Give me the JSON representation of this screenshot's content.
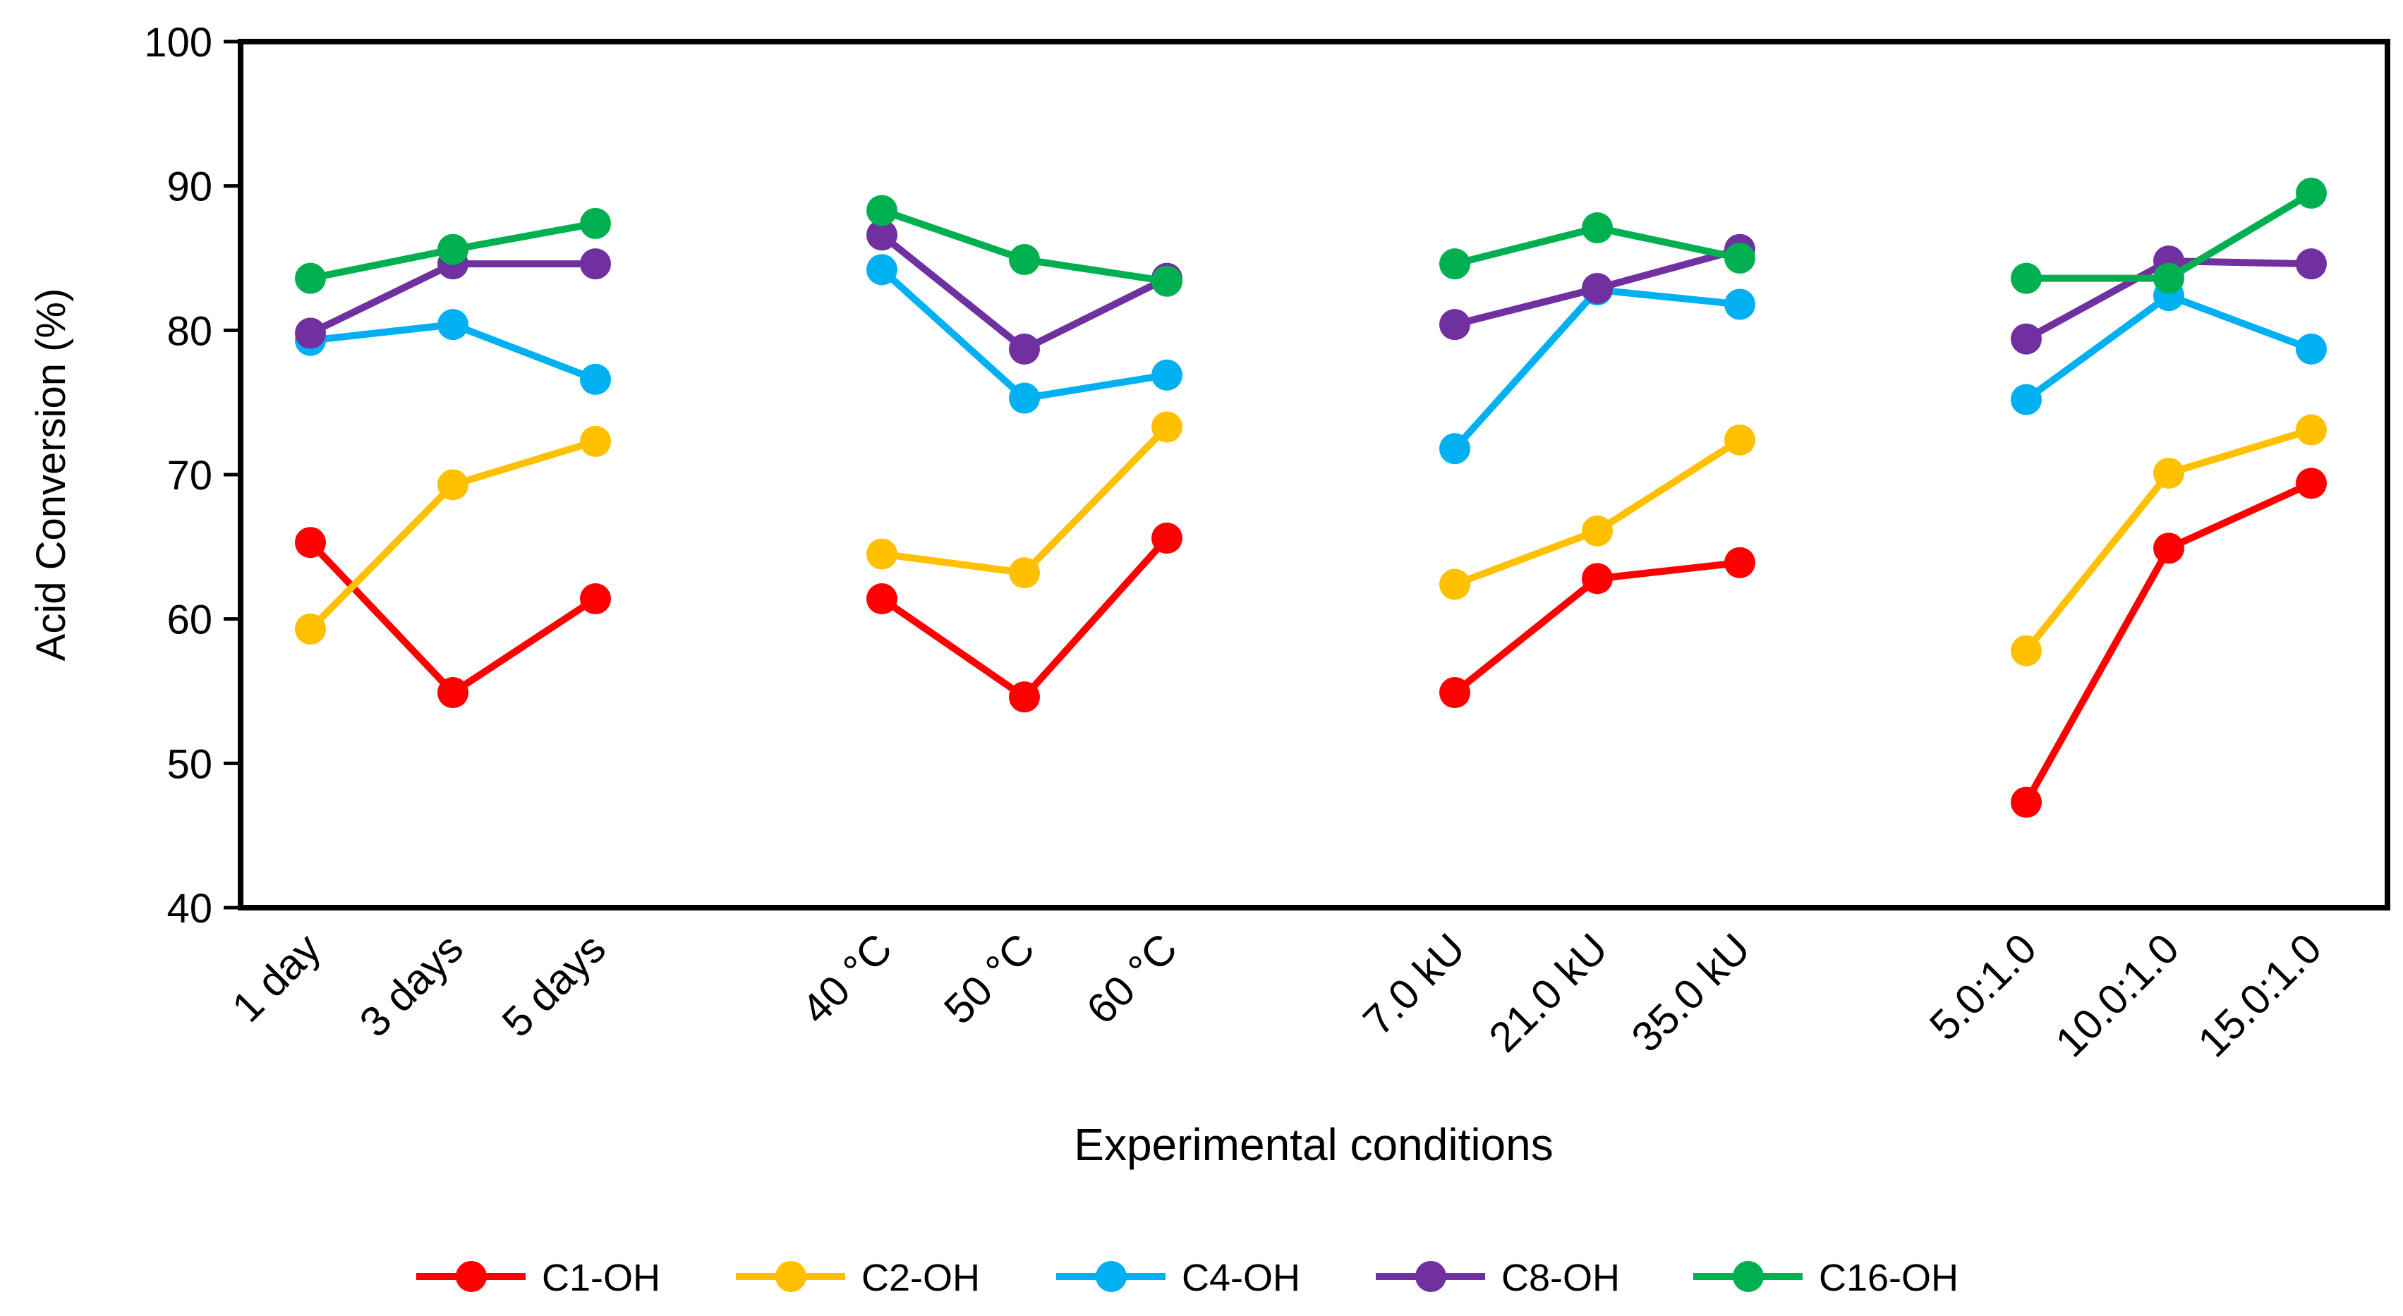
{
  "chart_data": {
    "type": "line",
    "title": "",
    "xlabel": "Experimental conditions",
    "ylabel": "Acid Conversion (%)",
    "ylim": [
      40,
      100
    ],
    "yticks": [
      40,
      50,
      60,
      70,
      80,
      90,
      100
    ],
    "grid": false,
    "legend_position": "bottom-center",
    "groups": [
      {
        "categories": [
          "1 day",
          "3 days",
          "5 days"
        ]
      },
      {
        "categories": [
          "40 °C",
          "50 °C",
          "60 °C"
        ]
      },
      {
        "categories": [
          "7.0 kU",
          "21.0 kU",
          "35.0 kU"
        ]
      },
      {
        "categories": [
          "5.0:1.0",
          "10.0:1.0",
          "15.0:1.0"
        ]
      }
    ],
    "series": [
      {
        "name": "C1-OH",
        "color": "#FF0000",
        "values": [
          [
            65.3,
            54.9,
            61.4
          ],
          [
            61.4,
            54.6,
            65.6
          ],
          [
            54.9,
            62.8,
            63.9
          ],
          [
            47.3,
            64.9,
            69.4
          ]
        ]
      },
      {
        "name": "C2-OH",
        "color": "#FFC000",
        "values": [
          [
            59.3,
            69.3,
            72.3
          ],
          [
            64.5,
            63.2,
            73.3
          ],
          [
            62.4,
            66.1,
            72.4
          ],
          [
            57.8,
            70.1,
            73.1
          ]
        ]
      },
      {
        "name": "C4-OH",
        "color": "#00B0F0",
        "values": [
          [
            79.3,
            80.4,
            76.6
          ],
          [
            84.2,
            75.3,
            76.9
          ],
          [
            71.8,
            82.8,
            81.8
          ],
          [
            75.2,
            82.4,
            78.7
          ]
        ]
      },
      {
        "name": "C8-OH",
        "color": "#7030A0",
        "values": [
          [
            79.8,
            84.6,
            84.6
          ],
          [
            86.6,
            78.7,
            83.6
          ],
          [
            80.4,
            82.9,
            85.6
          ],
          [
            79.4,
            84.8,
            84.6
          ]
        ]
      },
      {
        "name": "C16-OH",
        "color": "#00B050",
        "values": [
          [
            83.6,
            85.6,
            87.4
          ],
          [
            88.3,
            84.9,
            83.4
          ],
          [
            84.6,
            87.1,
            85.0
          ],
          [
            83.6,
            83.6,
            89.5
          ]
        ]
      }
    ]
  }
}
